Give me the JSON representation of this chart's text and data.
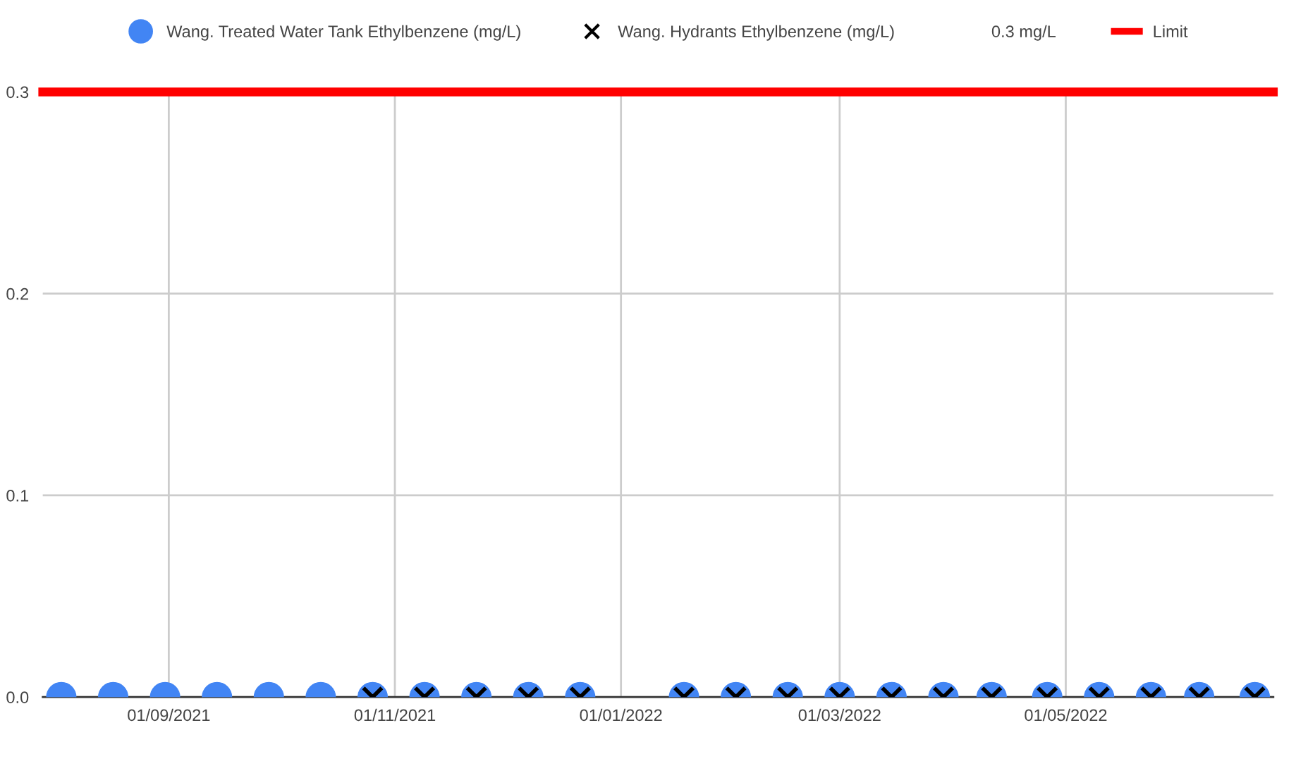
{
  "chart_data": {
    "type": "scatter",
    "x": [
      "2021-08-03",
      "2021-08-17",
      "2021-08-31",
      "2021-09-14",
      "2021-09-28",
      "2021-10-12",
      "2021-10-26",
      "2021-11-09",
      "2021-11-23",
      "2021-12-07",
      "2021-12-21",
      "2022-01-18",
      "2022-02-01",
      "2022-02-15",
      "2022-03-01",
      "2022-03-15",
      "2022-03-29",
      "2022-04-11",
      "2022-04-26",
      "2022-05-10",
      "2022-05-24",
      "2022-06-06",
      "2022-06-21"
    ],
    "series": [
      {
        "name": "Wang. Treated Water Tank Ethylbenzene (mg/L)",
        "color": "#4285f4",
        "marker": "circle",
        "values": [
          0,
          0,
          0,
          0,
          0,
          0,
          0,
          0,
          0,
          0,
          0,
          0,
          0,
          0,
          0,
          0,
          0,
          0,
          0,
          0,
          0,
          0,
          0
        ]
      },
      {
        "name": "Wang. Hydrants Ethylbenzene (mg/L)",
        "color": "#000000",
        "marker": "cross",
        "values": [
          null,
          null,
          null,
          null,
          null,
          null,
          0,
          0,
          0,
          0,
          0,
          0,
          0,
          0,
          0,
          0,
          0,
          0,
          0,
          0,
          0,
          0,
          0
        ]
      }
    ],
    "ref_lines": [
      {
        "axis": "y",
        "value": 0.3,
        "label": "Limit",
        "color": "#ff0000"
      }
    ],
    "annotations": [
      "0.3 mg/L"
    ],
    "xlim": [
      "2021-07-29",
      "2022-06-26"
    ],
    "xticks": [
      {
        "value": "2021-09-01",
        "label": "01/09/2021"
      },
      {
        "value": "2021-11-01",
        "label": "01/11/2021"
      },
      {
        "value": "2022-01-01",
        "label": "01/01/2022"
      },
      {
        "value": "2022-03-01",
        "label": "01/03/2022"
      },
      {
        "value": "2022-05-01",
        "label": "01/05/2022"
      }
    ],
    "ylim": [
      0,
      0.3
    ],
    "yticks": [
      {
        "value": 0,
        "label": "0.0"
      },
      0.1,
      0.2,
      0.3
    ],
    "grid": true,
    "legend": "top"
  }
}
